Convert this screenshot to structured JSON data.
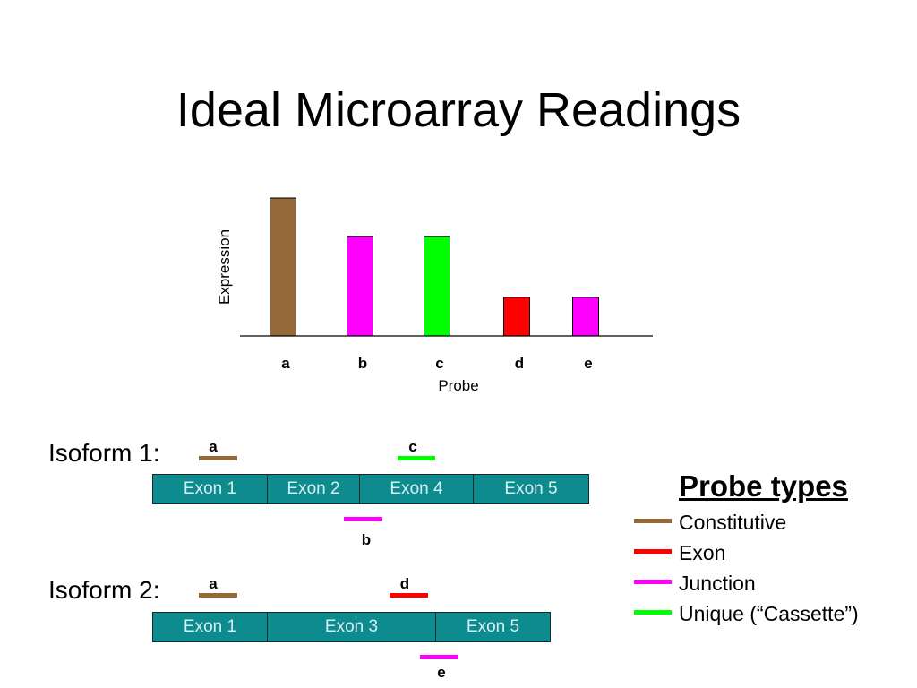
{
  "title": "Ideal Microarray Readings",
  "colors": {
    "constitutive": "#956a38",
    "exon": "#ff0000",
    "junction": "#ff00ff",
    "unique": "#00ff00",
    "exon_fill": "#0d8b8e"
  },
  "chart_data": {
    "type": "bar",
    "title": "",
    "xlabel": "Probe",
    "ylabel": "Expression",
    "categories": [
      "a",
      "b",
      "c",
      "d",
      "e"
    ],
    "values": [
      100,
      72,
      72,
      28,
      28
    ],
    "bar_colors": [
      "#956a38",
      "#ff00ff",
      "#00ff00",
      "#ff0000",
      "#ff00ff"
    ],
    "ylim": [
      0,
      100
    ],
    "grid": false
  },
  "isoforms": [
    {
      "label": "Isoform 1:",
      "exons": [
        "Exon 1",
        "Exon 2",
        "Exon 4",
        "Exon 5"
      ],
      "probes": [
        {
          "label": "a",
          "type": "constitutive"
        },
        {
          "label": "c",
          "type": "unique"
        },
        {
          "label": "b",
          "type": "junction"
        }
      ]
    },
    {
      "label": "Isoform 2:",
      "exons": [
        "Exon 1",
        "Exon 3",
        "Exon 5"
      ],
      "probes": [
        {
          "label": "a",
          "type": "constitutive"
        },
        {
          "label": "d",
          "type": "exon"
        },
        {
          "label": "e",
          "type": "junction"
        }
      ]
    }
  ],
  "legend": {
    "title": "Probe types",
    "items": [
      {
        "label": "Constitutive",
        "type": "constitutive"
      },
      {
        "label": "Exon",
        "type": "exon"
      },
      {
        "label": "Junction",
        "type": "junction"
      },
      {
        "label": "Unique (“Cassette”)",
        "type": "unique"
      }
    ]
  }
}
